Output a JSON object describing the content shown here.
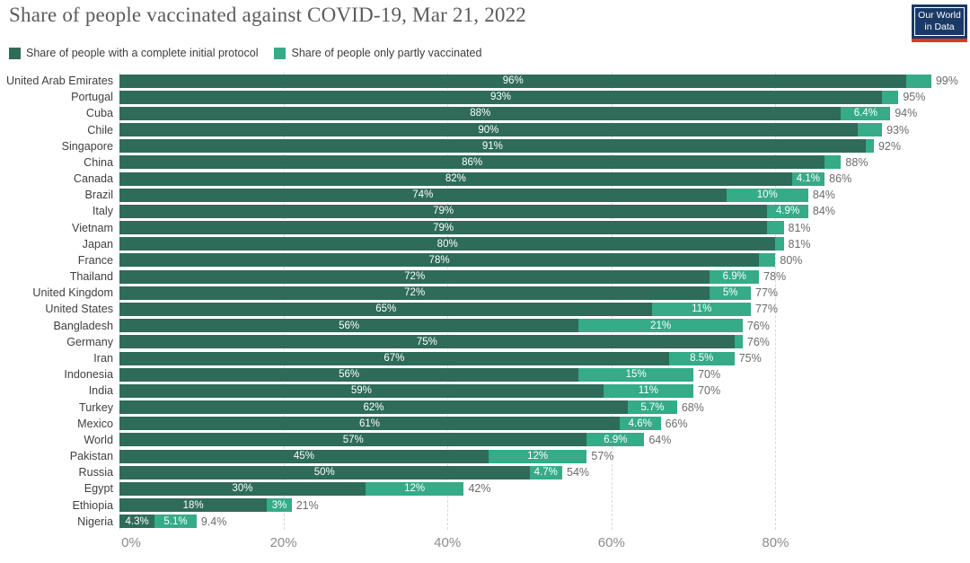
{
  "header": {
    "title": "Share of people vaccinated against COVID-19, Mar 21, 2022",
    "logo": {
      "line1": "Our World",
      "line2": "in Data"
    }
  },
  "legend": [
    {
      "label": "Share of people with a complete initial protocol",
      "color": "#2e6b59"
    },
    {
      "label": "Share of people only partly vaccinated",
      "color": "#35ab88"
    }
  ],
  "chart_data": {
    "type": "bar",
    "orientation": "horizontal",
    "stacked": true,
    "title": "Share of people vaccinated against COVID-19, Mar 21, 2022",
    "xlabel": "",
    "ylabel": "",
    "xlim": [
      0,
      103.6
    ],
    "x_ticks": [
      "0%",
      "20%",
      "40%",
      "60%",
      "80%"
    ],
    "grid": "vertical-dashed",
    "legend_position": "top-left",
    "colors": {
      "complete": "#2e6b59",
      "partial": "#35ab88"
    },
    "series_names": [
      "Share of people with a complete initial protocol",
      "Share of people only partly vaccinated"
    ],
    "rows": [
      {
        "country": "United Arab Emirates",
        "complete": 96,
        "total": 99,
        "complete_label": "96%",
        "partial_label": "",
        "total_label": "99%"
      },
      {
        "country": "Portugal",
        "complete": 93,
        "total": 95,
        "complete_label": "93%",
        "partial_label": "",
        "total_label": "95%"
      },
      {
        "country": "Cuba",
        "complete": 88,
        "total": 94,
        "complete_label": "88%",
        "partial_label": "6.4%",
        "total_label": "94%"
      },
      {
        "country": "Chile",
        "complete": 90,
        "total": 93,
        "complete_label": "90%",
        "partial_label": "",
        "total_label": "93%"
      },
      {
        "country": "Singapore",
        "complete": 91,
        "total": 92,
        "complete_label": "91%",
        "partial_label": "",
        "total_label": "92%"
      },
      {
        "country": "China",
        "complete": 86,
        "total": 88,
        "complete_label": "86%",
        "partial_label": "",
        "total_label": "88%"
      },
      {
        "country": "Canada",
        "complete": 82,
        "total": 86,
        "complete_label": "82%",
        "partial_label": "4.1%",
        "total_label": "86%"
      },
      {
        "country": "Brazil",
        "complete": 74,
        "total": 84,
        "complete_label": "74%",
        "partial_label": "10%",
        "total_label": "84%"
      },
      {
        "country": "Italy",
        "complete": 79,
        "total": 84,
        "complete_label": "79%",
        "partial_label": "4.9%",
        "total_label": "84%"
      },
      {
        "country": "Vietnam",
        "complete": 79,
        "total": 81,
        "complete_label": "79%",
        "partial_label": "",
        "total_label": "81%"
      },
      {
        "country": "Japan",
        "complete": 80,
        "total": 81,
        "complete_label": "80%",
        "partial_label": "",
        "total_label": "81%"
      },
      {
        "country": "France",
        "complete": 78,
        "total": 80,
        "complete_label": "78%",
        "partial_label": "",
        "total_label": "80%"
      },
      {
        "country": "Thailand",
        "complete": 72,
        "total": 78,
        "complete_label": "72%",
        "partial_label": "6.9%",
        "total_label": "78%"
      },
      {
        "country": "United Kingdom",
        "complete": 72,
        "total": 77,
        "complete_label": "72%",
        "partial_label": "5%",
        "total_label": "77%"
      },
      {
        "country": "United States",
        "complete": 65,
        "total": 77,
        "complete_label": "65%",
        "partial_label": "11%",
        "total_label": "77%"
      },
      {
        "country": "Bangladesh",
        "complete": 56,
        "total": 76,
        "complete_label": "56%",
        "partial_label": "21%",
        "total_label": "76%"
      },
      {
        "country": "Germany",
        "complete": 75,
        "total": 76,
        "complete_label": "75%",
        "partial_label": "",
        "total_label": "76%"
      },
      {
        "country": "Iran",
        "complete": 67,
        "total": 75,
        "complete_label": "67%",
        "partial_label": "8.5%",
        "total_label": "75%"
      },
      {
        "country": "Indonesia",
        "complete": 56,
        "total": 70,
        "complete_label": "56%",
        "partial_label": "15%",
        "total_label": "70%"
      },
      {
        "country": "India",
        "complete": 59,
        "total": 70,
        "complete_label": "59%",
        "partial_label": "11%",
        "total_label": "70%"
      },
      {
        "country": "Turkey",
        "complete": 62,
        "total": 68,
        "complete_label": "62%",
        "partial_label": "5.7%",
        "total_label": "68%"
      },
      {
        "country": "Mexico",
        "complete": 61,
        "total": 66,
        "complete_label": "61%",
        "partial_label": "4.6%",
        "total_label": "66%"
      },
      {
        "country": "World",
        "complete": 57,
        "total": 64,
        "complete_label": "57%",
        "partial_label": "6.9%",
        "total_label": "64%"
      },
      {
        "country": "Pakistan",
        "complete": 45,
        "total": 57,
        "complete_label": "45%",
        "partial_label": "12%",
        "total_label": "57%"
      },
      {
        "country": "Russia",
        "complete": 50,
        "total": 54,
        "complete_label": "50%",
        "partial_label": "4.7%",
        "total_label": "54%"
      },
      {
        "country": "Egypt",
        "complete": 30,
        "total": 42,
        "complete_label": "30%",
        "partial_label": "12%",
        "total_label": "42%"
      },
      {
        "country": "Ethiopia",
        "complete": 18,
        "total": 21,
        "complete_label": "18%",
        "partial_label": "3%",
        "total_label": "21%"
      },
      {
        "country": "Nigeria",
        "complete": 4.3,
        "total": 9.4,
        "complete_label": "4.3%",
        "partial_label": "5.1%",
        "total_label": "9.4%"
      }
    ]
  }
}
